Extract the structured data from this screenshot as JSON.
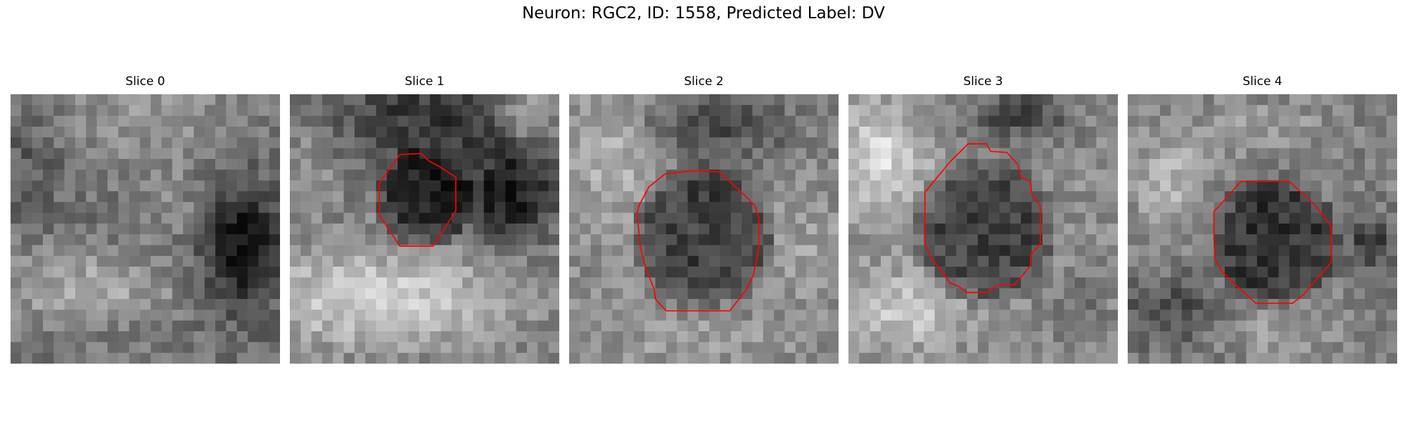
{
  "figure": {
    "title": "Neuron: RGC2, ID: 1558, Predicted Label: DV",
    "grid_size": 25,
    "contour_color": "#ff0000",
    "slices": [
      {
        "title": "Slice 0",
        "cell_mask": [],
        "contour": []
      },
      {
        "title": "Slice 1",
        "cell_mask": [
          {
            "cx": 12.5,
            "cy": 9.6,
            "r": 4.2
          }
        ],
        "contour": [
          [
            8.3,
            8.3
          ],
          [
            10.2,
            5.6
          ],
          [
            12.2,
            5.5
          ],
          [
            12.9,
            6.2
          ],
          [
            13.7,
            6.6
          ],
          [
            15.4,
            7.7
          ],
          [
            15.4,
            10.8
          ],
          [
            13.3,
            14.1
          ],
          [
            10.2,
            14.1
          ],
          [
            8.3,
            11.2
          ]
        ]
      },
      {
        "title": "Slice 2",
        "cell_mask": [
          {
            "cx": 12.5,
            "cy": 13.1,
            "r": 6.1
          }
        ],
        "contour": [
          [
            6.5,
            10.3
          ],
          [
            7.4,
            8.6
          ],
          [
            8.9,
            7.4
          ],
          [
            11.5,
            7.1
          ],
          [
            13.9,
            7.2
          ],
          [
            16.2,
            9.3
          ],
          [
            17.2,
            10.3
          ],
          [
            17.6,
            11.4
          ],
          [
            17.6,
            14.3
          ],
          [
            17.3,
            15.8
          ],
          [
            17.1,
            16.8
          ],
          [
            16.4,
            18.2
          ],
          [
            14.9,
            20.1
          ],
          [
            9.0,
            20.1
          ],
          [
            8.0,
            19.0
          ],
          [
            7.9,
            18.1
          ],
          [
            7.1,
            16.1
          ],
          [
            6.6,
            14.2
          ],
          [
            6.3,
            11.0
          ]
        ]
      },
      {
        "title": "Slice 3",
        "cell_mask": [
          {
            "cx": 12.6,
            "cy": 12.8,
            "r": 6.1
          }
        ],
        "contour": [
          [
            7.1,
            9.1
          ],
          [
            9.4,
            6.3
          ],
          [
            11.1,
            4.6
          ],
          [
            12.8,
            4.6
          ],
          [
            13.2,
            5.3
          ],
          [
            14.7,
            5.4
          ],
          [
            15.7,
            6.5
          ],
          [
            16.0,
            7.7
          ],
          [
            16.9,
            8.1
          ],
          [
            17.0,
            9.2
          ],
          [
            17.8,
            10.4
          ],
          [
            17.8,
            13.9
          ],
          [
            16.9,
            14.9
          ],
          [
            16.9,
            15.9
          ],
          [
            15.4,
            17.7
          ],
          [
            13.9,
            17.7
          ],
          [
            12.8,
            18.4
          ],
          [
            11.0,
            18.4
          ],
          [
            10.2,
            17.8
          ],
          [
            9.4,
            17.5
          ],
          [
            8.5,
            16.2
          ],
          [
            7.9,
            15.5
          ],
          [
            7.1,
            14.0
          ],
          [
            7.1,
            11.1
          ]
        ]
      },
      {
        "title": "Slice 4",
        "cell_mask": [
          {
            "cx": 13.7,
            "cy": 13.6,
            "r": 5.5
          }
        ],
        "contour": [
          [
            8.0,
            10.9
          ],
          [
            10.5,
            8.1
          ],
          [
            15.0,
            8.1
          ],
          [
            17.3,
            10.2
          ],
          [
            18.9,
            12.3
          ],
          [
            18.9,
            15.6
          ],
          [
            18.1,
            16.5
          ],
          [
            16.3,
            18.6
          ],
          [
            15.3,
            19.4
          ],
          [
            11.9,
            19.4
          ],
          [
            9.9,
            17.6
          ],
          [
            8.8,
            16.5
          ],
          [
            8.1,
            15.3
          ],
          [
            8.0,
            13.4
          ]
        ]
      }
    ]
  }
}
